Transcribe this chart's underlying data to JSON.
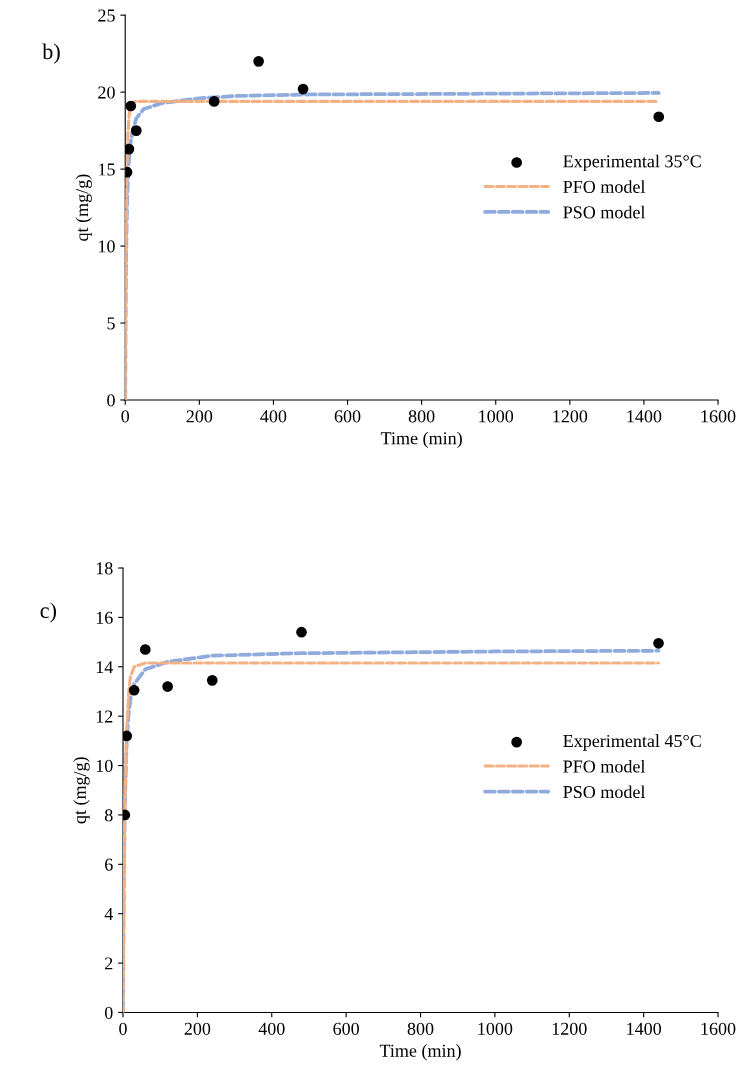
{
  "chart_data": [
    {
      "type": "line",
      "annotations": [
        "b)"
      ],
      "xlabel": "Time (min)",
      "ylabel": "qt (mg/g)",
      "xlim": [
        0,
        1600
      ],
      "xticks": [
        0,
        200,
        400,
        600,
        800,
        1000,
        1200,
        1400,
        1600
      ],
      "ylim": [
        0,
        25
      ],
      "yticks": [
        0,
        5,
        10,
        15,
        20,
        25
      ],
      "grid": false,
      "legend": "right",
      "series": [
        {
          "name": "Experimental 35°C",
          "type": "scatter",
          "marker": "circle",
          "color": "#000000",
          "x": [
            5,
            10,
            15,
            30,
            240,
            360,
            480,
            1440
          ],
          "values": [
            14.8,
            16.3,
            19.1,
            17.5,
            19.4,
            22.0,
            20.2,
            18.4
          ]
        },
        {
          "name": "PFO model",
          "line_style": "dashed",
          "marker": "none",
          "color": "#f4b183",
          "x": [
            0,
            1,
            2,
            3,
            5,
            7,
            10,
            15,
            20,
            30,
            60,
            240,
            1440
          ],
          "values": [
            0,
            5.0,
            8.7,
            11.6,
            15.1,
            17.1,
            18.4,
            19.2,
            19.35,
            19.4,
            19.4,
            19.4,
            19.4
          ]
        },
        {
          "name": "PSO model",
          "line_style": "dashed",
          "marker": "none",
          "color": "#8faadc",
          "x": [
            0,
            1,
            2,
            3,
            5,
            7,
            10,
            15,
            20,
            30,
            50,
            100,
            200,
            300,
            500,
            1000,
            1440
          ],
          "values": [
            0,
            5.3,
            8.4,
            10.4,
            12.8,
            14.3,
            15.6,
            16.8,
            17.5,
            18.3,
            18.9,
            19.3,
            19.6,
            19.75,
            19.85,
            19.9,
            19.95
          ]
        }
      ]
    },
    {
      "type": "line",
      "annotations": [
        "c)"
      ],
      "xlabel": "Time (min)",
      "ylabel": "qt (mg/g)",
      "xlim": [
        0,
        1600
      ],
      "xticks": [
        0,
        200,
        400,
        600,
        800,
        1000,
        1200,
        1400,
        1600
      ],
      "ylim": [
        0,
        18
      ],
      "yticks": [
        0,
        2,
        4,
        6,
        8,
        10,
        12,
        14,
        16,
        18
      ],
      "grid": false,
      "legend": "right",
      "series": [
        {
          "name": "Experimental 45°C",
          "type": "scatter",
          "marker": "circle",
          "color": "#000000",
          "x": [
            5,
            10,
            30,
            60,
            120,
            240,
            480,
            1440
          ],
          "values": [
            8.0,
            11.2,
            13.05,
            14.7,
            13.2,
            13.45,
            15.4,
            14.95
          ]
        },
        {
          "name": "PFO model",
          "line_style": "dashed",
          "marker": "none",
          "color": "#f4b183",
          "x": [
            0,
            2,
            5,
            10,
            15,
            20,
            30,
            60,
            240,
            1440
          ],
          "values": [
            0,
            4.0,
            8.2,
            11.5,
            12.9,
            13.6,
            14.0,
            14.15,
            14.15,
            14.15
          ]
        },
        {
          "name": "PSO model",
          "line_style": "dashed",
          "marker": "none",
          "color": "#8faadc",
          "x": [
            0,
            2,
            5,
            10,
            15,
            20,
            30,
            60,
            120,
            240,
            480,
            1000,
            1440
          ],
          "values": [
            0,
            5.0,
            8.5,
            11.0,
            12.1,
            12.7,
            13.3,
            13.9,
            14.2,
            14.45,
            14.55,
            14.62,
            14.65
          ]
        }
      ]
    }
  ]
}
